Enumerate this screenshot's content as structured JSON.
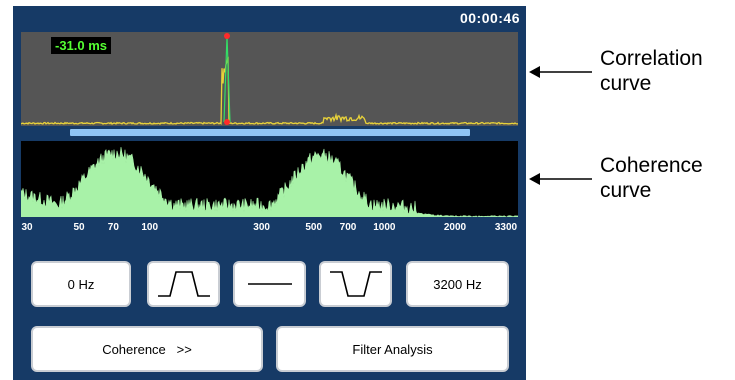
{
  "status": {
    "clock": "00:00:46"
  },
  "correlation": {
    "readout": "-31.0 ms"
  },
  "frequency_axis": {
    "ticks": [
      {
        "label": "30",
        "value": 30
      },
      {
        "label": "50",
        "value": 50
      },
      {
        "label": "70",
        "value": 70
      },
      {
        "label": "100",
        "value": 100
      },
      {
        "label": "300",
        "value": 300
      },
      {
        "label": "500",
        "value": 500
      },
      {
        "label": "700",
        "value": 700
      },
      {
        "label": "1000",
        "value": 1000
      },
      {
        "label": "2000",
        "value": 2000
      },
      {
        "label": "3300",
        "value": 3300
      }
    ]
  },
  "controls": {
    "low_freq_label": "0 Hz",
    "high_freq_label": "3200 Hz",
    "bandpass_icon": "bandpass-filter-icon",
    "flat_icon": "no-filter-icon",
    "bandstop_icon": "bandstop-filter-icon"
  },
  "buttons": {
    "coherence_label": "Coherence   >>",
    "filter_analysis_label": "Filter Analysis"
  },
  "annotations": {
    "correlation_line1": "Correlation",
    "correlation_line2": "curve",
    "coherence_line1": "Coherence",
    "coherence_line2": "curve"
  },
  "colors": {
    "device_bg": "#163a66",
    "correlation_trace": "#e8d23a",
    "correlation_peak_marker": "#ff2a2a",
    "coherence_fill": "#a8f2a8",
    "range_bar": "#8fc4f5",
    "readout_text": "#55ff33"
  }
}
